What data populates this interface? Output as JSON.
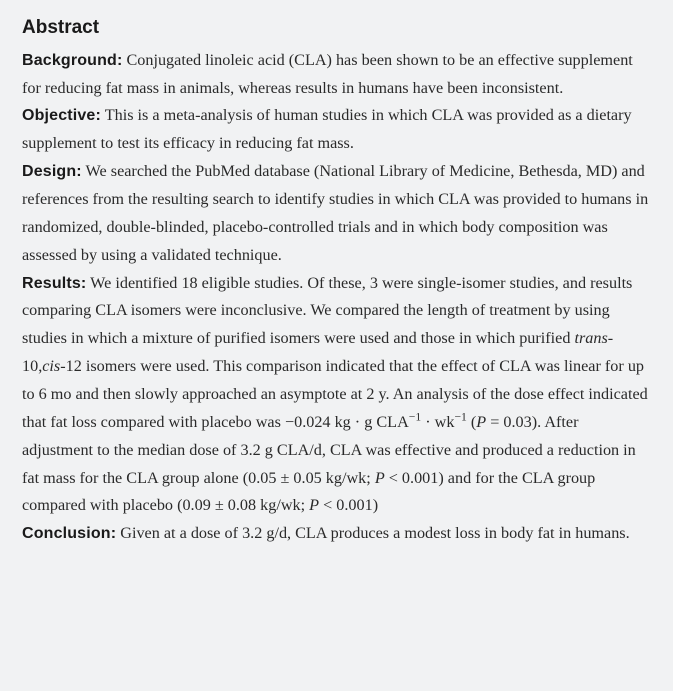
{
  "title": "Abstract",
  "sections": {
    "background": {
      "label": "Background:",
      "text": " Conjugated linoleic acid (CLA) has been shown to be an effective supplement for reducing fat mass in animals, whereas results in humans have been inconsistent."
    },
    "objective": {
      "label": "Objective:",
      "text": " This is a meta-analysis of human studies in which CLA was provided as a dietary supplement to test its efficacy in reducing fat mass."
    },
    "design": {
      "label": "Design:",
      "text": " We searched the PubMed database (National Library of Medicine, Bethesda, MD) and references from the resulting search to identify studies in which CLA was provided to humans in randomized, double-blinded, placebo-controlled trials and in which body composition was assessed by using a validated technique."
    },
    "results": {
      "label": "Results:",
      "pre": " We identified 18 eligible studies. Of these, 3 were single-isomer studies, and results comparing CLA isomers were inconclusive. We compared the length of treatment by using studies in which a mixture of purified isomers were used and those in which purified ",
      "isomer1": "trans",
      "mid1": "-10,",
      "isomer2": "cis",
      "post_isomer": "-12 isomers were used. This comparison indicated that the effect of CLA was linear for up to 6 mo and then slowly approached an asymptote at 2 y. An analysis of the dose effect indicated that fat loss compared with placebo was −0.024 kg · g CLA",
      "sup1": "−1",
      "dot": " · wk",
      "sup2": "−1",
      "after_sup": " (",
      "pvar1": "P",
      "pval1": " = 0.03). After adjustment to the median dose of 3.2 g CLA/d, CLA was effective and produced a reduction in fat mass for the CLA group alone (0.05 ± 0.05 kg/wk; ",
      "pvar2": "P",
      "pval2": " < 0.001) and for the CLA group compared with placebo (0.09 ± 0.08 kg/wk; ",
      "pvar3": "P",
      "pval3": " < 0.001)"
    },
    "conclusion": {
      "label": "Conclusion:",
      "text": " Given at a dose of 3.2 g/d, CLA produces a modest loss in body fat in humans."
    }
  }
}
